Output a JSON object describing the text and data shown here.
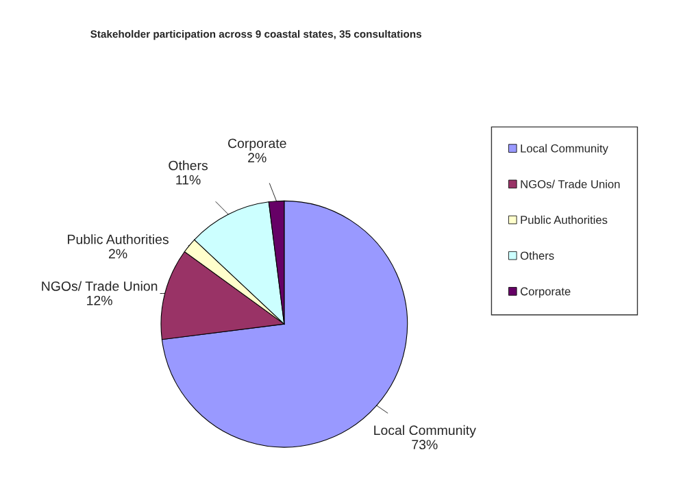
{
  "chart_data": {
    "type": "pie",
    "title": "Stakeholder participation across 9 coastal states, 35 consultations",
    "categories": [
      "Local Community",
      "NGOs/ Trade Union",
      "Public Authorities",
      "Others",
      "Corporate"
    ],
    "values": [
      73,
      12,
      2,
      11,
      2
    ],
    "value_labels": [
      "73%",
      "12%",
      "2%",
      "11%",
      "2%"
    ],
    "colors": [
      "#9999ff",
      "#993366",
      "#ffffcc",
      "#ccffff",
      "#660066"
    ],
    "legend": "right"
  }
}
